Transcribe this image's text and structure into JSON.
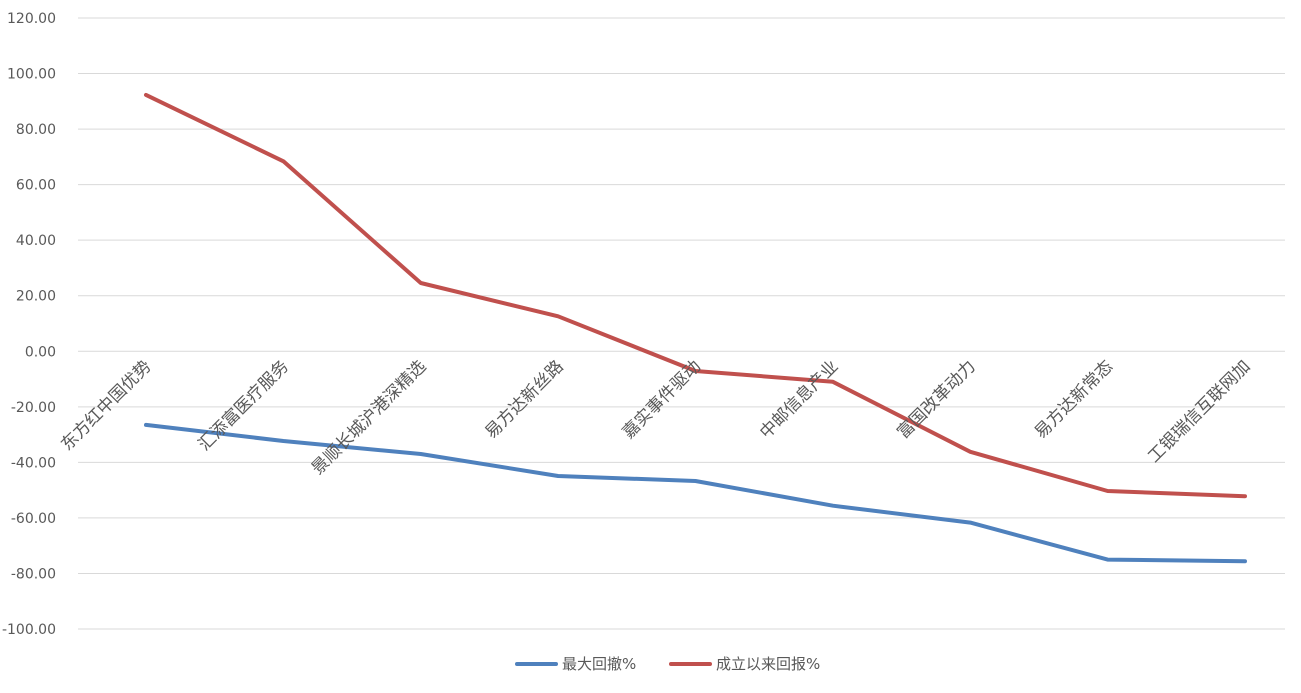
{
  "chart_data": {
    "type": "line",
    "categories": [
      "东方红中国优势",
      "汇添富医疗服务",
      "景顺长城沪港深精选",
      "易方达新丝路",
      "嘉实事件驱动",
      "中邮信息产业",
      "富国改革动力",
      "易方达新常态",
      "工银瑞信互联网加"
    ],
    "series": [
      {
        "name": "最大回撤%",
        "color": "#4f81bd",
        "values": [
          -26.5,
          -32.3,
          -37.0,
          -44.9,
          -46.7,
          -55.6,
          -61.7,
          -75.0,
          -75.6
        ]
      },
      {
        "name": "成立以来回报%",
        "color": "#c0504d",
        "values": [
          92.3,
          68.4,
          24.6,
          12.6,
          -7.1,
          -11.0,
          -36.2,
          -50.3,
          -52.2
        ]
      }
    ],
    "ylim": [
      -100,
      120
    ],
    "yticks": [
      "120.00",
      "100.00",
      "80.00",
      "60.00",
      "40.00",
      "20.00",
      "0.00",
      "-20.00",
      "-40.00",
      "-60.00",
      "-80.00",
      "-100.00"
    ],
    "grid": true,
    "legend_position": "bottom",
    "gridline_color": "#d9d9d9",
    "label_color": "#595959"
  }
}
